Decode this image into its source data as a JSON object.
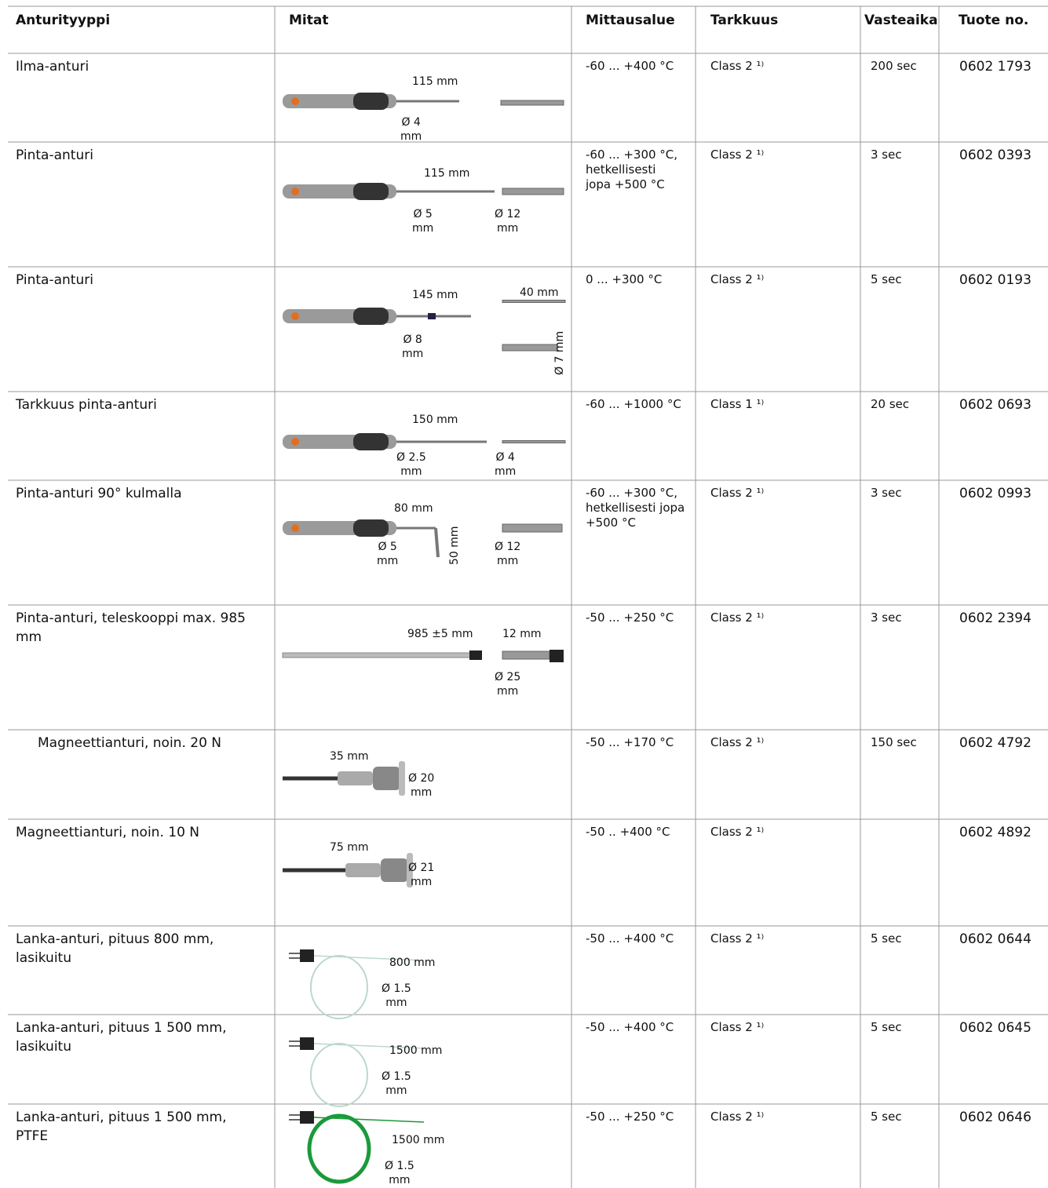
{
  "table": {
    "header": [
      "Anturityyppi",
      "Mitat",
      "Mittausalue",
      "Tarkkuus",
      "Vasteaika",
      "Tuote no."
    ],
    "rows": [
      {
        "type": "Ilma-anturi",
        "dims": [
          "115 mm",
          "Ø  4\nmm"
        ],
        "range": "-60 ... +400 °C",
        "accuracy": "Class 2 ¹⁾",
        "response": "200 sec",
        "product": "0602 1793"
      },
      {
        "type": "Pinta-anturi",
        "dims": [
          "115 mm",
          "Ø  5\nmm",
          "Ø  12\nmm"
        ],
        "range": "-60 ... +300 °C,\nhetkellisesti\njopa +500 °C",
        "accuracy": "Class 2 ¹⁾",
        "response": "3 sec",
        "product": "0602 0393"
      },
      {
        "type": "Pinta-anturi",
        "dims": [
          "145 mm",
          "40 mm",
          "Ø  8\nmm",
          "Ø  7\nmm"
        ],
        "range": "0 ... +300 °C",
        "accuracy": "Class 2 ¹⁾",
        "response": "5 sec",
        "product": "0602 0193"
      },
      {
        "type": "Tarkkuus pinta-anturi",
        "dims": [
          "150 mm",
          "Ø  2.5\nmm",
          "Ø  4\nmm"
        ],
        "range": "-60 ... +1000 °C",
        "accuracy": "Class 1 ¹⁾",
        "response": "20 sec",
        "product": "0602 0693"
      },
      {
        "type": "Pinta-anturi 90° kulmalla",
        "dims": [
          "80 mm",
          "Ø  5\nmm",
          "50 mm",
          "Ø  12\nmm"
        ],
        "range": "-60 ... +300 °C,\nhetkellisesti  jopa\n+500 °C",
        "accuracy": "Class 2 ¹⁾",
        "response": "3 sec",
        "product": "0602 0993"
      },
      {
        "type": "Pinta-anturi, teleskooppi max. 985\nmm",
        "dims": [
          "985 ±5 mm",
          "12 mm",
          "Ø  25\nmm"
        ],
        "range": "-50 ... +250 °C",
        "accuracy": "Class 2 ¹⁾",
        "response": "3 sec",
        "product": "0602 2394"
      },
      {
        "type": "Magneettianturi, noin. 20 N",
        "dims": [
          "35 mm",
          "Ø  20\nmm"
        ],
        "range": "-50 ... +170 °C",
        "accuracy": "Class 2 ¹⁾",
        "response": "150 sec",
        "product": "0602 4792"
      },
      {
        "type": "Magneettianturi, noin. 10 N",
        "dims": [
          "75 mm",
          "Ø  21\nmm"
        ],
        "range": "-50 .. +400 °C",
        "accuracy": "Class 2 ¹⁾",
        "product": "0602 4892"
      },
      {
        "type": "Lanka-anturi, pituus 800 mm,\nlasikuitu",
        "dims": [
          "800 mm",
          "Ø  1.5\nmm"
        ],
        "range": "-50 ... +400 °C",
        "accuracy": "Class 2 ¹⁾",
        "response": "5 sec",
        "product": "0602 0644"
      },
      {
        "type": "Lanka-anturi, pituus 1 500 mm,\nlasikuitu",
        "dims": [
          "1500 mm",
          "Ø  1.5\nmm"
        ],
        "range": "-50 ... +400 °C",
        "accuracy": "Class 2 ¹⁾",
        "response": "5 sec",
        "product": "0602 0645"
      },
      {
        "type": "Lanka-anturi, pituus 1 500 mm,\nPTFE",
        "dims": [
          "1500 mm",
          "Ø  1.5\nmm"
        ],
        "range": "-50 ... +250 °C",
        "accuracy": "Class 2 ¹⁾",
        "response": "5 sec",
        "product": "0602 0646"
      }
    ]
  }
}
